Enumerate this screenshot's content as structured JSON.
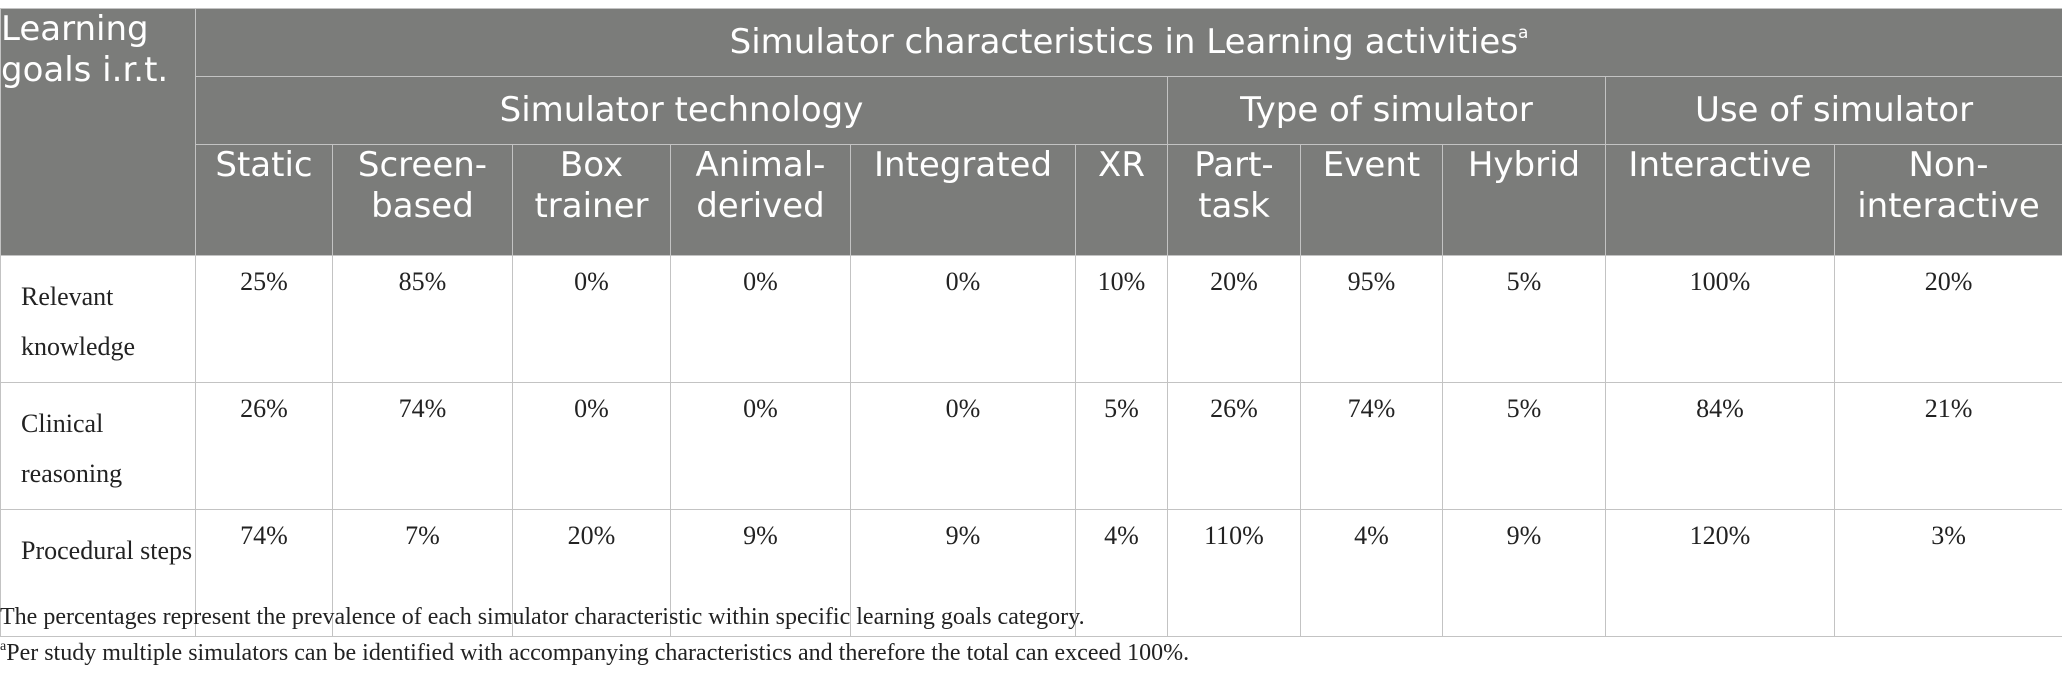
{
  "table": {
    "corner_header": "Learning goals i.r.t.",
    "title": "Simulator characteristics in Learning activities",
    "title_footnote_mark": "a",
    "groups": [
      {
        "label": "Simulator technology"
      },
      {
        "label": "Type of simulator"
      },
      {
        "label": "Use of simulator"
      }
    ],
    "columns": [
      "Static",
      "Screen-based",
      "Box trainer",
      "Animal-derived",
      "Integrated",
      "XR",
      "Part-task",
      "Event",
      "Hybrid",
      "Interactive",
      "Non-interactive"
    ],
    "rows": [
      {
        "label": "Relevant knowledge",
        "values": [
          "25%",
          "85%",
          "0%",
          "0%",
          "0%",
          "10%",
          "20%",
          "95%",
          "5%",
          "100%",
          "20%"
        ]
      },
      {
        "label": "Clinical reasoning",
        "values": [
          "26%",
          "74%",
          "0%",
          "0%",
          "0%",
          "5%",
          "26%",
          "74%",
          "5%",
          "84%",
          "21%"
        ]
      },
      {
        "label": "Procedural steps",
        "values": [
          "74%",
          "7%",
          "20%",
          "9%",
          "9%",
          "4%",
          "110%",
          "4%",
          "9%",
          "120%",
          "3%"
        ]
      }
    ]
  },
  "notes": {
    "note1": "The percentages represent the prevalence of each simulator characteristic within specific learning goals category.",
    "note2_mark": "a",
    "note2": "Per study multiple simulators can be identified with accompanying characteristics and therefore the total can exceed 100%."
  }
}
